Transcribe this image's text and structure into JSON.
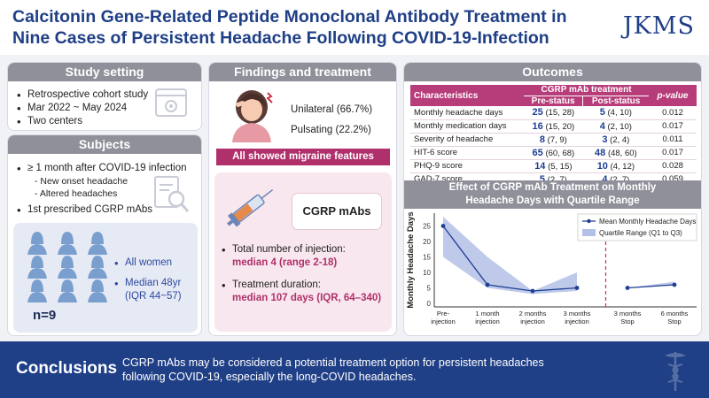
{
  "header": {
    "title_line1": "Calcitonin Gene-Related Peptide Monoclonal Antibody Treatment in",
    "title_line2": "Nine Cases of Persistent Headache Following COVID-19-Infection",
    "logo": "JKMS"
  },
  "study": {
    "heading": "Study setting",
    "items": [
      "Retrospective cohort study",
      "Mar 2022 ~ May 2024",
      "Two centers"
    ]
  },
  "subjects": {
    "heading": "Subjects",
    "item1": "≥ 1 month after COVID-19 infection",
    "sub1": "- New onset headache",
    "sub2": "- Altered headaches",
    "item2": "1st prescribed CGRP mAbs",
    "bullet_women": "All women",
    "bullet_median_line1": "Median 48yr",
    "bullet_median_line2": "(IQR 44~57)",
    "n_label": "n=9"
  },
  "findings": {
    "heading": "Findings and treatment",
    "unilateral": "Unilateral (66.7%)",
    "pulsating": "Pulsating (22.2%)",
    "banner": "All showed migraine features",
    "bubble": "CGRP mAbs",
    "injection_label": "Total number of injection:",
    "injection_value": "median 4 (range 2-18)",
    "duration_label": "Treatment duration:",
    "duration_value": "median 107 days (IQR, 64–340)"
  },
  "outcomes": {
    "heading": "Outcomes",
    "col_characteristics": "Characteristics",
    "col_treatment": "CGRP mAb treatment",
    "col_pre": "Pre-status",
    "col_post": "Post-status",
    "col_pvalue": "p-value",
    "rows": [
      {
        "name": "Monthly headache days",
        "pre_main": "25",
        "pre_iqr": "(15, 28)",
        "post_main": "5",
        "post_iqr": "(4, 10)",
        "p": "0.012"
      },
      {
        "name": "Monthly medication days",
        "pre_main": "16",
        "pre_iqr": "(15, 20)",
        "post_main": "4",
        "post_iqr": "(2, 10)",
        "p": "0.017"
      },
      {
        "name": "Severity of headache",
        "pre_main": "8",
        "pre_iqr": "(7, 9)",
        "post_main": "3",
        "post_iqr": "(2, 4)",
        "p": "0.011"
      },
      {
        "name": "HIT-6 score",
        "pre_main": "65",
        "pre_iqr": "(60, 68)",
        "post_main": "48",
        "post_iqr": "(48, 60)",
        "p": "0.017"
      },
      {
        "name": "PHQ-9 score",
        "pre_main": "14",
        "pre_iqr": "(5, 15)",
        "post_main": "10",
        "post_iqr": "(4, 12)",
        "p": "0.028"
      },
      {
        "name": "GAD-7 score",
        "pre_main": "5",
        "pre_iqr": "(2, 7)",
        "post_main": "4",
        "post_iqr": "(2, 7)",
        "p": "0.059"
      }
    ]
  },
  "chart_heading_line1": "Effect of CGRP mAb Treatment on Monthly",
  "chart_heading_line2": "Headache Days with Quartile Range",
  "chart_data": {
    "type": "line",
    "title": "Effect of CGRP mAb Treatment on Monthly Headache Days with Quartile Range",
    "ylabel": "Monthly Headache Days",
    "xlabel": "",
    "ylim": [
      0,
      28
    ],
    "yticks": [
      0,
      5,
      10,
      15,
      20,
      25
    ],
    "categories": [
      "Pre-\ninjection",
      "1 month\ninjection",
      "2 months\ninjection",
      "3 months\ninjection",
      "3 months\nStop",
      "6 months\nStop"
    ],
    "series": [
      {
        "name": "Mean Monthly Headache Days",
        "segments": [
          [
            0,
            1,
            2,
            3
          ],
          [
            4,
            5
          ]
        ],
        "values": [
          25,
          6,
          4,
          5,
          5,
          6
        ]
      }
    ],
    "quartile_range": {
      "name": "Quartile Range (Q1 to Q3)",
      "q1": [
        15,
        5,
        3,
        4,
        5,
        6
      ],
      "q3": [
        28,
        15,
        4,
        10,
        5,
        7
      ]
    },
    "divider_after_index": 3,
    "legend": "top-right"
  },
  "conclusions": {
    "heading": "Conclusions",
    "text_line1": "CGRP mAbs may be considered a potential treatment option for persistent headaches",
    "text_line2": "following COVID-19, especially the long-COVID headaches."
  },
  "colors": {
    "navy": "#1f3f86",
    "gray_head": "#8f909a",
    "table_head": "#b73d7a",
    "magenta": "#b0306c",
    "blue_figure": "#7a9fce",
    "band": "#b4c1e6",
    "line": "#1f3e92",
    "divider": "#c8354a"
  }
}
